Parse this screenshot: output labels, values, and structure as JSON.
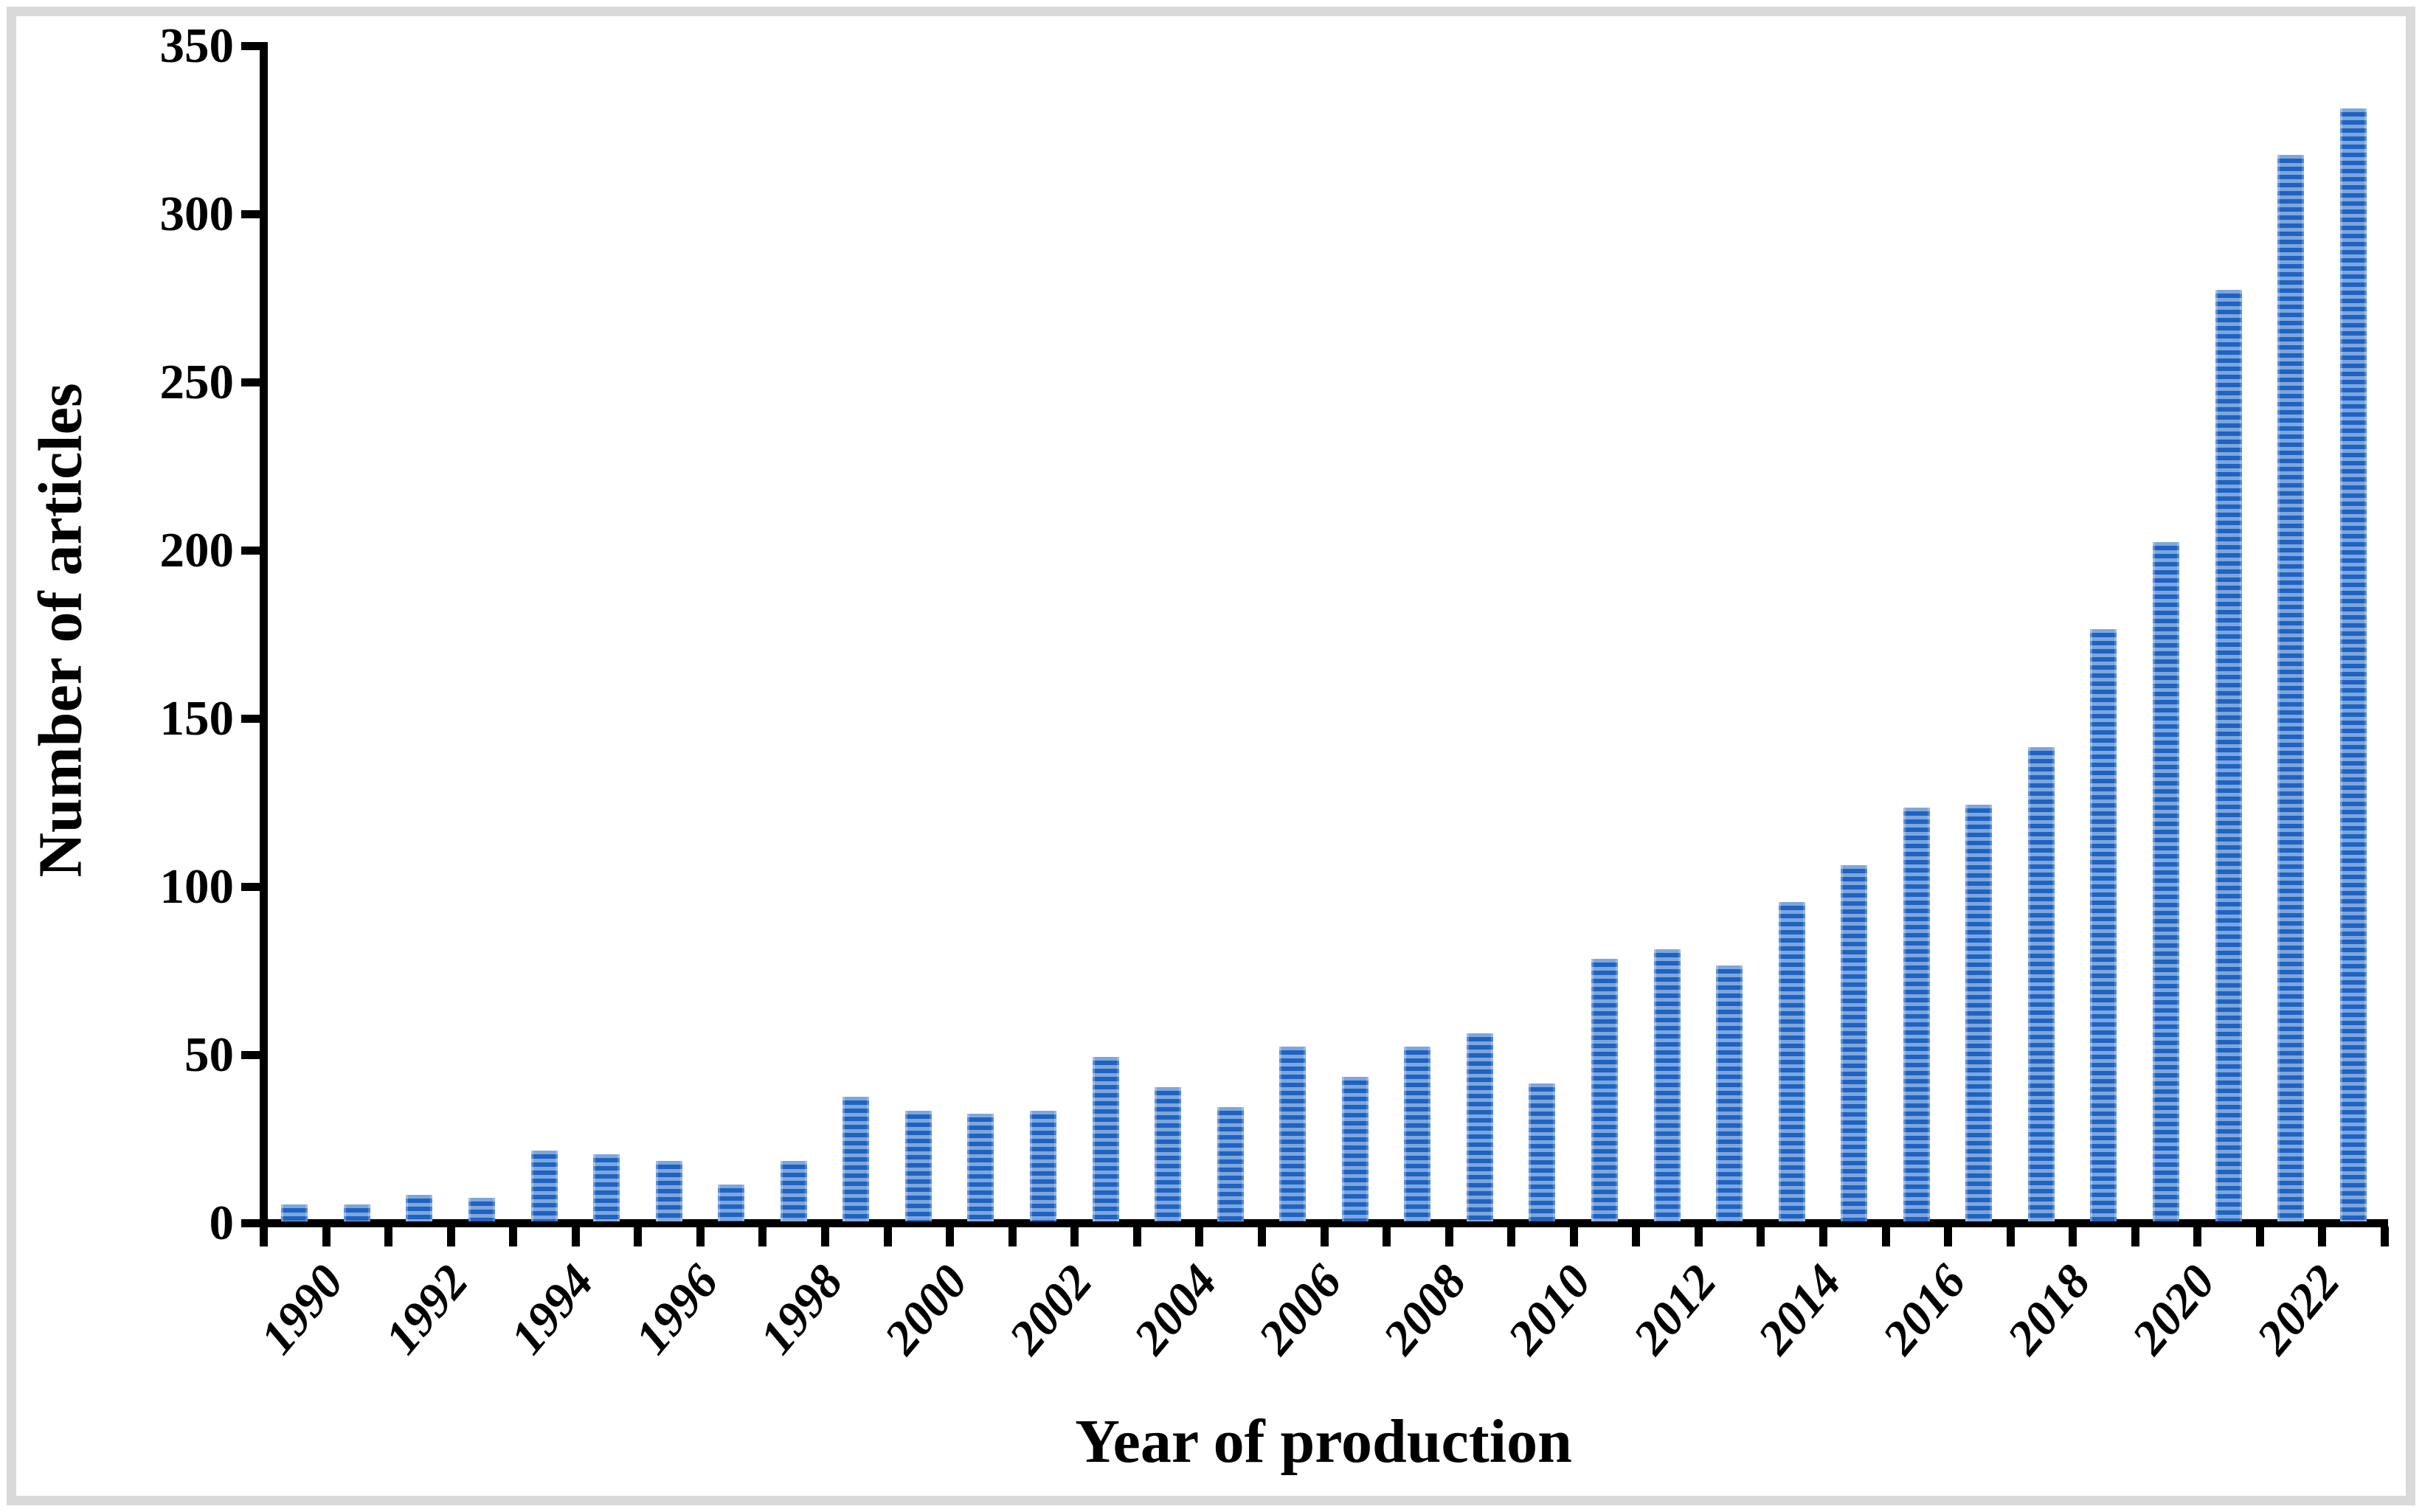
{
  "frame": {
    "border_color": "#d9d9d9",
    "background": "#ffffff"
  },
  "chart_data": {
    "type": "bar",
    "title": "",
    "xlabel": "Year of production",
    "ylabel": "Number of articles",
    "years": [
      1990,
      1991,
      1992,
      1993,
      1994,
      1995,
      1996,
      1997,
      1998,
      1999,
      2000,
      2001,
      2002,
      2003,
      2004,
      2005,
      2006,
      2007,
      2008,
      2009,
      2010,
      2011,
      2012,
      2013,
      2014,
      2015,
      2016,
      2017,
      2018,
      2019,
      2020,
      2021,
      2022,
      2023
    ],
    "values": [
      5,
      5,
      8,
      7,
      21,
      20,
      18,
      11,
      18,
      37,
      33,
      32,
      33,
      49,
      40,
      34,
      52,
      43,
      52,
      56,
      41,
      78,
      81,
      76,
      95,
      106,
      123,
      124,
      141,
      176,
      202,
      277,
      317,
      331
    ],
    "ylim": [
      0,
      350
    ],
    "ytick_step": 50,
    "ytick_labels": [
      "0",
      "50",
      "100",
      "150",
      "200",
      "250",
      "300",
      "350"
    ],
    "xtick_labels": [
      "1990",
      "1992",
      "1994",
      "1996",
      "1998",
      "2000",
      "2002",
      "2004",
      "2006",
      "2008",
      "2010",
      "2012",
      "2014",
      "2016",
      "2018",
      "2020",
      "2022"
    ],
    "grid": false,
    "legend": null,
    "bar_color_dark": "#1e63c2",
    "bar_color_light": "#7fa6db",
    "axis_color": "#000000",
    "text_color": "#000000"
  }
}
